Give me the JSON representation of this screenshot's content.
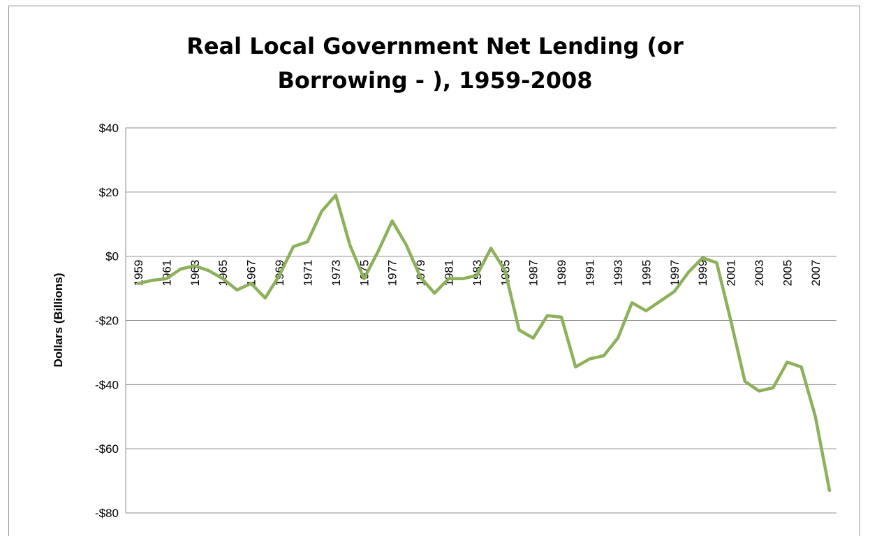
{
  "colors": {
    "line": "#8db15a",
    "grid": "#8c8c8c",
    "frame": "#8c8c8c"
  },
  "chart_data": {
    "type": "line",
    "title_lines": [
      "Real Local Government Net Lending (or",
      "Borrowing - ), 1959-2008"
    ],
    "xlabel": "",
    "ylabel": "Dollars (Billions)",
    "ylim": [
      -80,
      40
    ],
    "ytick_values": [
      40,
      20,
      0,
      -20,
      -40,
      -60,
      -80
    ],
    "ytick_labels": [
      "$40",
      "$20",
      "$0",
      "-$20",
      "-$40",
      "-$60",
      "-$80"
    ],
    "xtick_labels": [
      "1959",
      "1961",
      "1963",
      "1965",
      "1967",
      "1969",
      "1971",
      "1973",
      "1975",
      "1977",
      "1979",
      "1981",
      "1983",
      "1985",
      "1987",
      "1989",
      "1991",
      "1993",
      "1995",
      "1997",
      "1999",
      "2001",
      "2003",
      "2005",
      "2007"
    ],
    "grid": true,
    "legend": "none",
    "series": [
      {
        "x": [
          1959,
          1960,
          1961,
          1962,
          1963,
          1964,
          1965,
          1966,
          1967,
          1968,
          1969,
          1970,
          1971,
          1972,
          1973,
          1974,
          1975,
          1976,
          1977,
          1978,
          1979,
          1980,
          1981,
          1982,
          1983,
          1984,
          1985,
          1986,
          1987,
          1988,
          1989,
          1990,
          1991,
          1992,
          1993,
          1994,
          1995,
          1996,
          1997,
          1998,
          1999,
          2000,
          2001,
          2002,
          2003,
          2004,
          2005,
          2006,
          2007,
          2008
        ],
        "values": [
          -8.5,
          -7.5,
          -7,
          -4,
          -3,
          -4.5,
          -7,
          -10.5,
          -8.5,
          -13,
          -6,
          3,
          4.5,
          14,
          19,
          3.5,
          -7,
          1.5,
          11,
          3.5,
          -6.5,
          -11.5,
          -7,
          -7,
          -6,
          2.5,
          -4.5,
          -23,
          -25.5,
          -18.5,
          -19,
          -34.5,
          -32,
          -31,
          -25.5,
          -14.5,
          -17,
          -14,
          -11,
          -5,
          -0.5,
          -2,
          -20,
          -39,
          -42,
          -41,
          -33,
          -34.5,
          -50,
          -73
        ]
      }
    ]
  }
}
